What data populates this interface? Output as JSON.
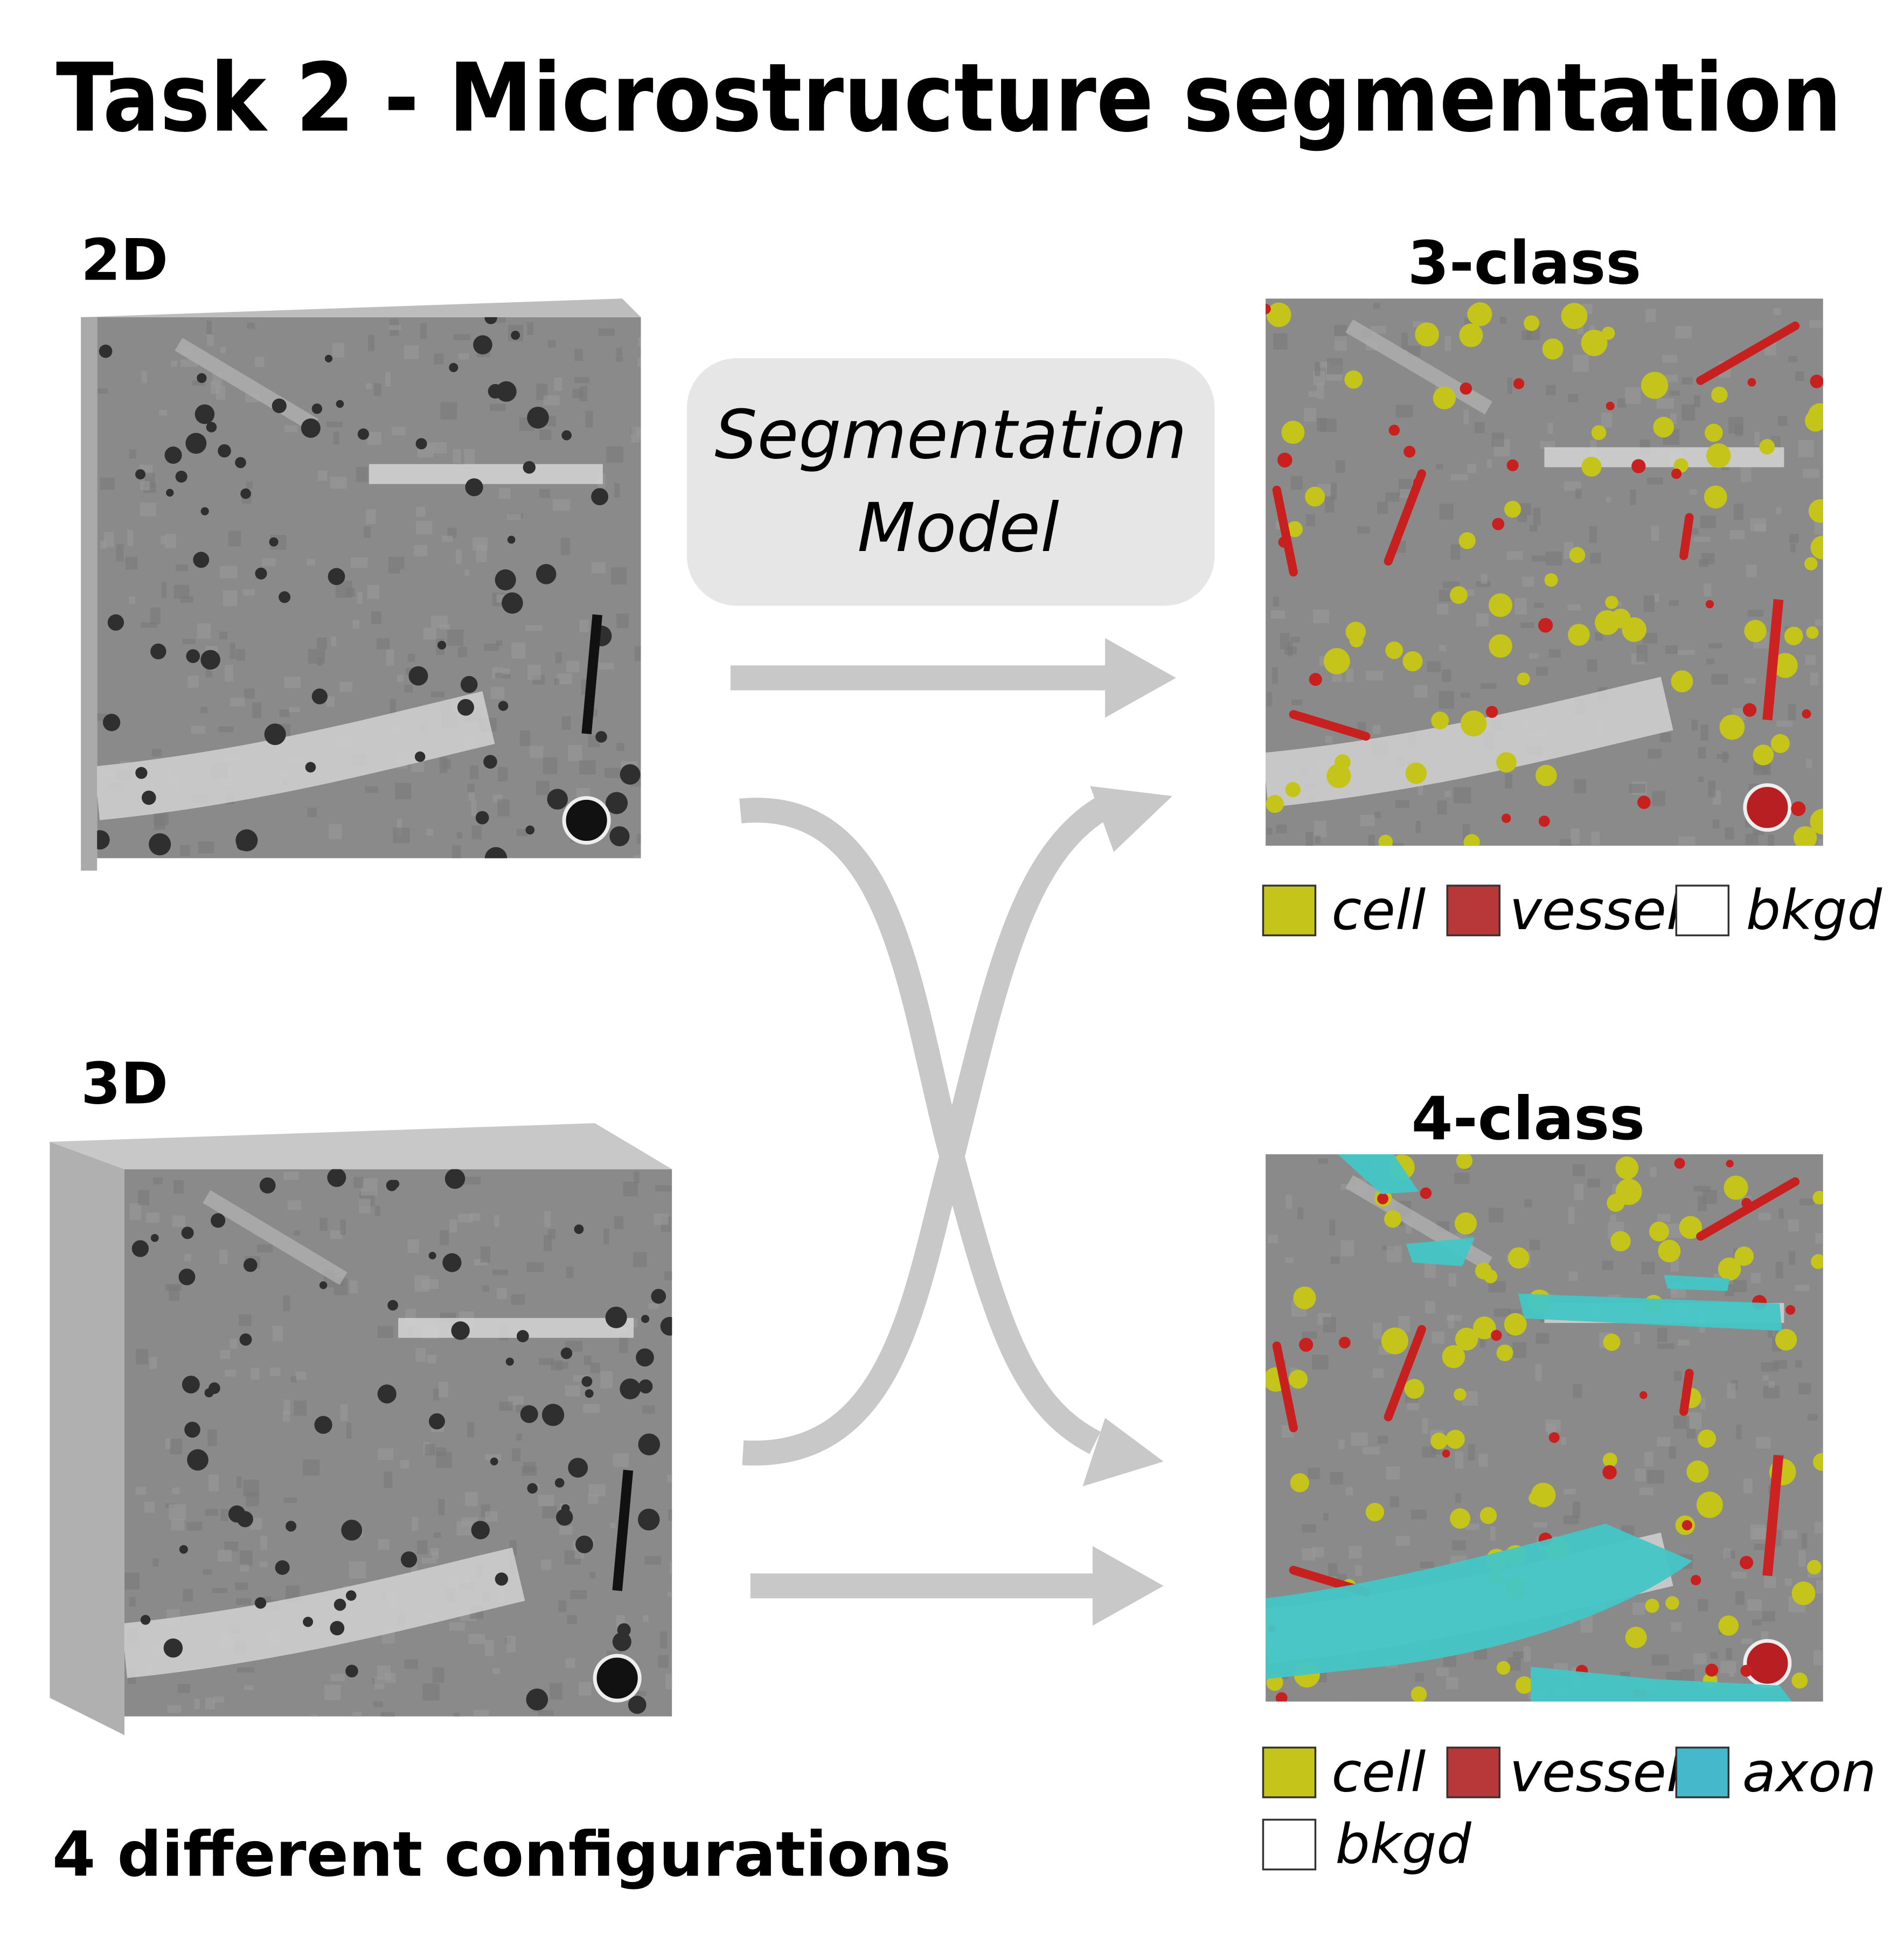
{
  "title": "Task 2 - Microstructure segmentation",
  "inputs": [
    {
      "label": "2D"
    },
    {
      "label": "3D"
    }
  ],
  "model": {
    "lines": [
      "Segmentation",
      "Model"
    ]
  },
  "outputs": [
    {
      "label": "3-class",
      "legend": [
        {
          "label": "cell",
          "color": "#c5c41a"
        },
        {
          "label": "vessel",
          "color": "#b8383a"
        },
        {
          "label": "bkgd",
          "color": "#ffffff"
        }
      ]
    },
    {
      "label": "4-class",
      "legend": [
        {
          "label": "cell",
          "color": "#c5c41a"
        },
        {
          "label": "vessel",
          "color": "#b8383a"
        },
        {
          "label": "axon",
          "color": "#45b9cb"
        },
        {
          "label": "bkgd",
          "color": "#ffffff"
        }
      ]
    }
  ],
  "footer": "4 different configurations"
}
